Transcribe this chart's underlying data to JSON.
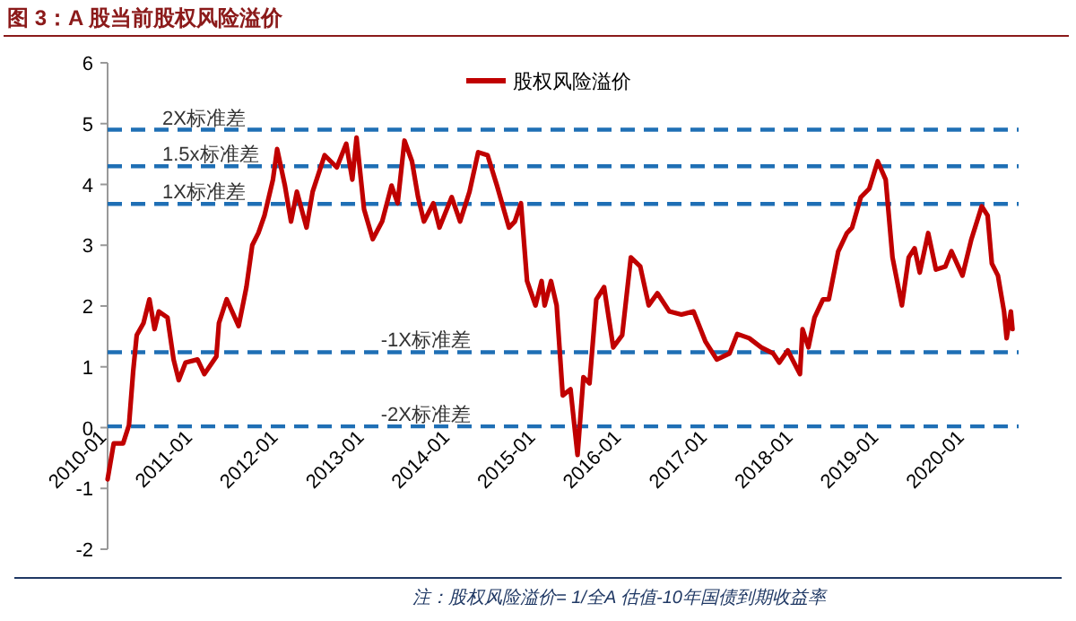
{
  "chart_data": {
    "type": "line",
    "title": "图 3：A 股当前股权风险溢价",
    "x": [
      "2010-01-01",
      "2010-01-27",
      "2010-03-08",
      "2010-04-02",
      "2010-04-20",
      "2010-05-05",
      "2010-06-03",
      "2010-06-28",
      "2010-07-20",
      "2010-08-07",
      "2010-09-13",
      "2010-10-09",
      "2010-10-31",
      "2010-11-29",
      "2011-01-19",
      "2011-02-17",
      "2011-04-09",
      "2011-04-20",
      "2011-05-23",
      "2011-07-13",
      "2011-08-15",
      "2011-09-09",
      "2011-10-05",
      "2011-10-31",
      "2011-12-06",
      "2011-12-24",
      "2012-01-26",
      "2012-02-21",
      "2012-03-17",
      "2012-04-27",
      "2012-05-23",
      "2012-07-13",
      "2012-09-03",
      "2012-10-13",
      "2012-11-08",
      "2012-11-26",
      "2012-12-28",
      "2013-02-03",
      "2013-03-15",
      "2013-04-24",
      "2013-05-20",
      "2013-06-18",
      "2013-07-20",
      "2013-08-15",
      "2013-09-09",
      "2013-10-19",
      "2013-11-14",
      "2014-01-05",
      "2014-02-10",
      "2014-03-22",
      "2014-04-28",
      "2014-06-07",
      "2014-07-17",
      "2014-09-06",
      "2014-10-01",
      "2014-10-27",
      "2014-11-22",
      "2014-12-28",
      "2015-01-23",
      "2015-02-05",
      "2015-03-04",
      "2015-03-28",
      "2015-04-23",
      "2015-05-26",
      "2015-06-25",
      "2015-07-20",
      "2015-08-15",
      "2015-09-13",
      "2015-10-16",
      "2015-11-24",
      "2016-01-01",
      "2016-02-07",
      "2016-03-18",
      "2016-04-23",
      "2016-05-30",
      "2016-07-20",
      "2016-09-09",
      "2016-10-31",
      "2016-12-20",
      "2017-02-07",
      "2017-04-02",
      "2017-05-05",
      "2017-06-25",
      "2017-08-15",
      "2017-10-05",
      "2017-10-31",
      "2017-12-06",
      "2018-01-27",
      "2018-02-07",
      "2018-03-04",
      "2018-03-30",
      "2018-05-05",
      "2018-05-30",
      "2018-07-09",
      "2018-08-15",
      "2018-09-06",
      "2018-10-13",
      "2018-11-18",
      "2018-12-24",
      "2019-01-27",
      "2019-02-25",
      "2019-04-06",
      "2019-05-05",
      "2019-05-30",
      "2019-06-21",
      "2019-07-27",
      "2019-08-29",
      "2019-10-08",
      "2019-11-03",
      "2019-12-20",
      "2020-01-27",
      "2020-03-11",
      "2020-04-05",
      "2020-04-23",
      "2020-05-19",
      "2020-06-14",
      "2020-06-25",
      "2020-07-13",
      "2020-07-20"
    ],
    "series": [
      {
        "name": "股权风险溢价",
        "color": "#c00000",
        "values": [
          -0.85,
          -0.26,
          -0.26,
          0.04,
          0.93,
          1.52,
          1.72,
          2.11,
          1.62,
          1.91,
          1.81,
          1.12,
          0.78,
          1.07,
          1.12,
          0.88,
          1.17,
          1.72,
          2.11,
          1.67,
          2.31,
          3.0,
          3.2,
          3.49,
          4.08,
          4.58,
          3.98,
          3.39,
          3.88,
          3.29,
          3.88,
          4.48,
          4.28,
          4.67,
          4.08,
          4.77,
          3.59,
          3.1,
          3.39,
          3.98,
          3.69,
          4.72,
          4.38,
          3.79,
          3.39,
          3.69,
          3.29,
          3.79,
          3.39,
          3.88,
          4.53,
          4.48,
          3.98,
          3.29,
          3.39,
          3.69,
          2.41,
          2.01,
          2.41,
          2.01,
          2.41,
          2.01,
          0.53,
          0.63,
          -0.45,
          0.83,
          0.73,
          2.11,
          2.31,
          1.32,
          1.52,
          2.8,
          2.65,
          2.01,
          2.21,
          1.91,
          1.86,
          1.91,
          1.42,
          1.12,
          1.22,
          1.54,
          1.47,
          1.32,
          1.22,
          1.07,
          1.27,
          0.88,
          1.62,
          1.32,
          1.81,
          2.11,
          2.11,
          2.9,
          3.2,
          3.29,
          3.79,
          3.93,
          4.38,
          4.08,
          2.8,
          2.01,
          2.8,
          2.95,
          2.55,
          3.2,
          2.6,
          2.65,
          2.9,
          2.5,
          3.1,
          3.64,
          3.49,
          2.7,
          2.5,
          1.91,
          1.47,
          1.91,
          1.62
        ]
      }
    ],
    "xlim": [
      "2010-01-01",
      "2020-08-15"
    ],
    "xticks": [
      {
        "value": "2010-01-01",
        "label": "2010-01"
      },
      {
        "value": "2011-01-01",
        "label": "2011-01"
      },
      {
        "value": "2012-01-01",
        "label": "2012-01"
      },
      {
        "value": "2013-01-01",
        "label": "2013-01"
      },
      {
        "value": "2014-01-01",
        "label": "2014-01"
      },
      {
        "value": "2015-01-01",
        "label": "2015-01"
      },
      {
        "value": "2016-01-01",
        "label": "2016-01"
      },
      {
        "value": "2017-01-01",
        "label": "2017-01"
      },
      {
        "value": "2018-01-01",
        "label": "2018-01"
      },
      {
        "value": "2019-01-01",
        "label": "2019-01"
      },
      {
        "value": "2020-01-01",
        "label": "2020-01"
      }
    ],
    "ylim": [
      -2,
      6
    ],
    "yticks": [
      -2,
      -1,
      0,
      1,
      2,
      3,
      4,
      5,
      6
    ],
    "ref_lines": [
      {
        "axis": "y",
        "value": 4.9,
        "label": "2X标准差",
        "color": "#1f6fb5",
        "line_style": "dashed"
      },
      {
        "axis": "y",
        "value": 4.3,
        "label": "1.5x标准差",
        "color": "#1f6fb5",
        "line_style": "dashed"
      },
      {
        "axis": "y",
        "value": 3.68,
        "label": "1X标准差",
        "color": "#1f6fb5",
        "line_style": "dashed"
      },
      {
        "axis": "y",
        "value": 1.24,
        "label": "-1X标准差",
        "color": "#1f6fb5",
        "line_style": "dashed"
      },
      {
        "axis": "y",
        "value": 0.02,
        "label": "-2X标准差",
        "color": "#1f6fb5",
        "line_style": "dashed"
      }
    ],
    "legend": "top",
    "grid": false,
    "marker": "none",
    "line_style": "solid",
    "annotations": [
      "注：股权风险溢价= 1/全A 估值-10年国债到期收益率"
    ]
  }
}
